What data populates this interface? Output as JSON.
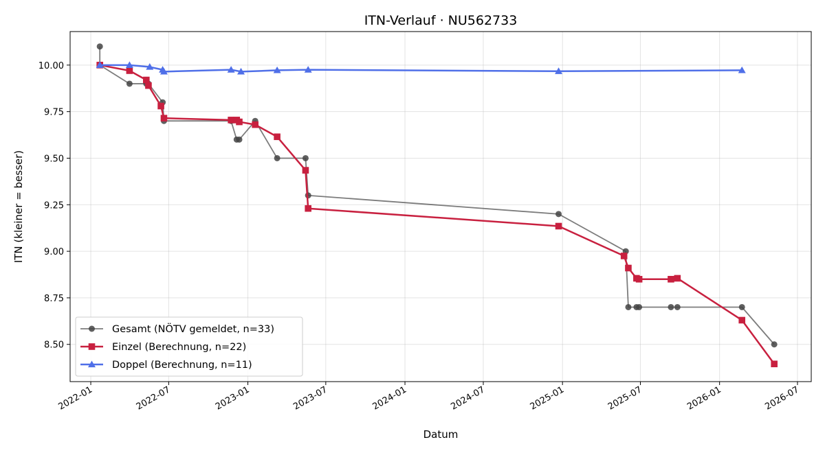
{
  "chart_data": {
    "type": "line",
    "title": "ITN-Verlauf · NU562733",
    "xlabel": "Datum",
    "ylabel": "ITN  (kleiner = besser)",
    "xlim": [
      "2021-11-14",
      "2026-08-02"
    ],
    "ylim": [
      8.3,
      10.18
    ],
    "x_ticks": [
      "2022-01-01",
      "2022-07-01",
      "2023-01-01",
      "2023-07-01",
      "2024-01-01",
      "2024-07-01",
      "2025-01-01",
      "2025-07-01",
      "2026-01-01",
      "2026-07-01"
    ],
    "x_tick_labels": [
      "2022-01",
      "2022-07",
      "2023-01",
      "2023-07",
      "2024-01",
      "2024-07",
      "2025-01",
      "2025-07",
      "2026-01",
      "2026-07"
    ],
    "y_ticks": [
      8.5,
      8.75,
      9.0,
      9.25,
      9.5,
      9.75,
      10.0
    ],
    "y_tick_labels": [
      "8.50",
      "8.75",
      "9.00",
      "9.25",
      "9.50",
      "9.75",
      "10.00"
    ],
    "grid": true,
    "legend_position": "bottom-left",
    "series": [
      {
        "name": "Gesamt (NÖTV gemeldet, n=33)",
        "color": "#444444",
        "marker": "circle",
        "points": [
          {
            "x": "2022-01-22",
            "y": 10.1
          },
          {
            "x": "2022-01-22",
            "y": 10.0
          },
          {
            "x": "2022-04-01",
            "y": 9.9
          },
          {
            "x": "2022-05-10",
            "y": 9.9
          },
          {
            "x": "2022-05-15",
            "y": 9.9
          },
          {
            "x": "2022-06-17",
            "y": 9.8
          },
          {
            "x": "2022-06-20",
            "y": 9.7
          },
          {
            "x": "2022-11-23",
            "y": 9.7
          },
          {
            "x": "2022-12-06",
            "y": 9.6
          },
          {
            "x": "2022-12-12",
            "y": 9.6
          },
          {
            "x": "2023-01-18",
            "y": 9.7
          },
          {
            "x": "2023-03-10",
            "y": 9.5
          },
          {
            "x": "2023-05-15",
            "y": 9.5
          },
          {
            "x": "2023-05-21",
            "y": 9.3
          },
          {
            "x": "2024-12-23",
            "y": 9.2
          },
          {
            "x": "2025-05-28",
            "y": 9.0
          },
          {
            "x": "2025-06-03",
            "y": 8.7
          },
          {
            "x": "2025-06-22",
            "y": 8.7
          },
          {
            "x": "2025-06-28",
            "y": 8.7
          },
          {
            "x": "2025-09-10",
            "y": 8.7
          },
          {
            "x": "2025-09-25",
            "y": 8.7
          },
          {
            "x": "2026-02-22",
            "y": 8.7
          },
          {
            "x": "2026-05-08",
            "y": 8.5
          }
        ]
      },
      {
        "name": "Einzel (Berechnung, n=22)",
        "color": "#c8203f",
        "marker": "square",
        "points": [
          {
            "x": "2022-01-22",
            "y": 10.0
          },
          {
            "x": "2022-04-01",
            "y": 9.97
          },
          {
            "x": "2022-05-10",
            "y": 9.92
          },
          {
            "x": "2022-05-15",
            "y": 9.89
          },
          {
            "x": "2022-06-13",
            "y": 9.78
          },
          {
            "x": "2022-06-20",
            "y": 9.715
          },
          {
            "x": "2022-11-23",
            "y": 9.705
          },
          {
            "x": "2022-12-06",
            "y": 9.705
          },
          {
            "x": "2022-12-12",
            "y": 9.695
          },
          {
            "x": "2023-01-18",
            "y": 9.68
          },
          {
            "x": "2023-03-10",
            "y": 9.615
          },
          {
            "x": "2023-05-15",
            "y": 9.435
          },
          {
            "x": "2023-05-21",
            "y": 9.23
          },
          {
            "x": "2024-12-23",
            "y": 9.135
          },
          {
            "x": "2025-05-24",
            "y": 8.975
          },
          {
            "x": "2025-06-03",
            "y": 8.91
          },
          {
            "x": "2025-06-22",
            "y": 8.855
          },
          {
            "x": "2025-06-28",
            "y": 8.85
          },
          {
            "x": "2025-09-10",
            "y": 8.85
          },
          {
            "x": "2025-09-25",
            "y": 8.855
          },
          {
            "x": "2026-02-22",
            "y": 8.63
          },
          {
            "x": "2026-05-08",
            "y": 8.395
          }
        ]
      },
      {
        "name": "Doppel (Berechnung, n=11)",
        "color": "#4f6fe8",
        "marker": "triangle",
        "points": [
          {
            "x": "2022-01-22",
            "y": 10.0
          },
          {
            "x": "2022-04-01",
            "y": 10.0
          },
          {
            "x": "2022-05-18",
            "y": 9.99
          },
          {
            "x": "2022-06-17",
            "y": 9.975
          },
          {
            "x": "2022-06-20",
            "y": 9.965
          },
          {
            "x": "2022-11-23",
            "y": 9.975
          },
          {
            "x": "2022-12-16",
            "y": 9.965
          },
          {
            "x": "2023-03-10",
            "y": 9.972
          },
          {
            "x": "2023-05-21",
            "y": 9.975
          },
          {
            "x": "2024-12-23",
            "y": 9.967
          },
          {
            "x": "2026-02-22",
            "y": 9.972
          }
        ]
      }
    ]
  }
}
